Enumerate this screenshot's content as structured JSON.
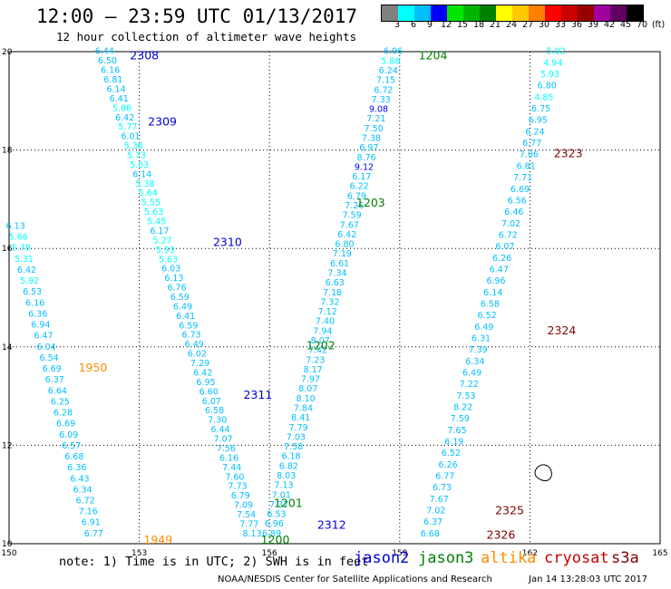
{
  "header": {
    "title": "12:00 – 23:59 UTC 01/13/2017",
    "subtitle": "12 hour collection of altimeter wave heights"
  },
  "legend": {
    "colors": [
      "#808080",
      "#00ffff",
      "#00bfff",
      "#0000ff",
      "#00e600",
      "#00b400",
      "#008000",
      "#ffff00",
      "#ffc800",
      "#ff8000",
      "#ff0000",
      "#c80000",
      "#960000",
      "#a000a0",
      "#600060",
      "#000000"
    ],
    "ticks": [
      "3",
      "6",
      "9",
      "12",
      "15",
      "18",
      "21",
      "24",
      "27",
      "30",
      "33",
      "36",
      "39",
      "42",
      "45",
      "70",
      "(ft)"
    ]
  },
  "map": {
    "x_ticks": [
      "150",
      "153",
      "156",
      "159",
      "162",
      "165"
    ],
    "y_ticks": [
      "20",
      "18",
      "16",
      "14",
      "12",
      "10"
    ],
    "coast_label": ""
  },
  "satellites": {
    "jason2": {
      "name": "jason2",
      "color": "#0000dd"
    },
    "jason3": {
      "name": "jason3",
      "color": "#008000"
    },
    "altika": {
      "name": "altika",
      "color": "#ff8c00"
    },
    "cryosat": {
      "name": "cryosat",
      "color": "#cc0000"
    },
    "s3a": {
      "name": "s3a",
      "color": "#800000"
    }
  },
  "tracks": [
    {
      "sat": "jason2",
      "label": "2308",
      "label_color": "#0000dd",
      "lon_start": 152.2,
      "lat_start": 19.95,
      "lon_end": 155.6,
      "lat_end": 10.15,
      "values": [
        "6.44",
        "6.50",
        "6.16",
        "6.81",
        "6.14",
        "6.41",
        "5.88",
        "6.42",
        "5.77",
        "6.01",
        "5.36",
        "5.73",
        "5.63",
        "6.14",
        "5.38",
        "5.64",
        "5.55",
        "5.63",
        "5.45",
        "6.17",
        "5.27",
        "5.93",
        "5.63",
        "6.03",
        "6.13",
        "6.76",
        "6.59",
        "6.49",
        "6.41",
        "6.59",
        "6.73",
        "6.49",
        "6.02",
        "7.29",
        "6.42",
        "6.95",
        "6.60",
        "6.07",
        "6.58",
        "7.30",
        "6.44",
        "7.07",
        "7.56",
        "6.16",
        "7.44",
        "7.60",
        "7.73",
        "6.79",
        "7.09",
        "7.54",
        "7.77",
        "8.13"
      ]
    },
    {
      "sat": "jason3",
      "label": "1204",
      "label_color": "#008000",
      "lon_start": 158.85,
      "lat_start": 19.95,
      "lon_end": 156.05,
      "lat_end": 10.15,
      "values": [
        "6.96",
        "5.86",
        "6.24",
        "7.15",
        "6.72",
        "7.33",
        "9.08",
        "7.21",
        "7.50",
        "7.38",
        "6.97",
        "8.76",
        "9.12",
        "6.17",
        "6.22",
        "6.79",
        "7.26",
        "7.59",
        "7.67",
        "6.42",
        "6.80",
        "7.19",
        "6.61",
        "7.34",
        "6.63",
        "7.18",
        "7.32",
        "7.12",
        "7.40",
        "7.94",
        "8.07",
        "7.42",
        "7.23",
        "8.17",
        "7.97",
        "8.07",
        "8.10",
        "7.84",
        "8.41",
        "7.79",
        "7.03",
        "7.58",
        "6.18",
        "6.82",
        "8.03",
        "7.13",
        "7.01",
        "7.37",
        "6.53",
        "6.96",
        "6.89"
      ]
    },
    {
      "sat": "jason2",
      "label": "",
      "label_color": "#0000dd",
      "lon_start": 150.15,
      "lat_start": 16.4,
      "lon_end": 151.95,
      "lat_end": 10.15,
      "values": [
        "6.13",
        "5.66",
        "5.78",
        "5.31",
        "6.42",
        "5.92",
        "6.53",
        "6.16",
        "6.36",
        "6.94",
        "6.47",
        "6.04",
        "6.54",
        "6.69",
        "6.37",
        "6.64",
        "6.25",
        "6.28",
        "6.69",
        "6.09",
        "6.57",
        "6.68",
        "6.36",
        "6.43",
        "6.34",
        "6.72",
        "7.16",
        "6.91",
        "6.77"
      ]
    },
    {
      "sat": "cryosat",
      "label": "",
      "label_color": "#cc0000",
      "lon_start": 162.6,
      "lat_start": 19.95,
      "lon_end": 159.7,
      "lat_end": 10.15,
      "values": [
        "5.02",
        "4.94",
        "5.93",
        "6.80",
        "4.85",
        "6.75",
        "6.95",
        "6.24",
        "6.77",
        "7.06",
        "6.81",
        "7.71",
        "6.69",
        "6.56",
        "6.46",
        "7.02",
        "6.72",
        "6.07",
        "6.26",
        "6.47",
        "6.96",
        "6.14",
        "6.58",
        "6.52",
        "6.49",
        "6.31",
        "7.39",
        "6.34",
        "6.49",
        "7.22",
        "7.53",
        "8.22",
        "7.59",
        "7.65",
        "6.19",
        "6.52",
        "6.26",
        "6.77",
        "6.73",
        "7.67",
        "7.02",
        "6.37",
        "6.68"
      ]
    }
  ],
  "labels": [
    {
      "text": "2309",
      "lon": 153.2,
      "lat": 18.5,
      "color": "#0000dd"
    },
    {
      "text": "1203",
      "lon": 158.0,
      "lat": 16.85,
      "color": "#008000"
    },
    {
      "text": "2310",
      "lon": 154.7,
      "lat": 16.05,
      "color": "#0000dd"
    },
    {
      "text": "2323",
      "lon": 162.55,
      "lat": 17.85,
      "color": "#800000"
    },
    {
      "text": "2324",
      "lon": 162.4,
      "lat": 14.25,
      "color": "#800000"
    },
    {
      "text": "1202",
      "lon": 156.85,
      "lat": 13.95,
      "color": "#008000"
    },
    {
      "text": "2311",
      "lon": 155.4,
      "lat": 12.95,
      "color": "#0000dd"
    },
    {
      "text": "1950",
      "lon": 151.6,
      "lat": 13.5,
      "color": "#ff8c00"
    },
    {
      "text": "1201",
      "lon": 156.1,
      "lat": 10.75,
      "color": "#008000"
    },
    {
      "text": "2312",
      "lon": 157.1,
      "lat": 10.3,
      "color": "#0000dd"
    },
    {
      "text": "2325",
      "lon": 161.2,
      "lat": 10.6,
      "color": "#800000"
    },
    {
      "text": "2326",
      "lon": 161.0,
      "lat": 10.1,
      "color": "#800000"
    },
    {
      "text": "1949",
      "lon": 153.1,
      "lat": 10.0,
      "color": "#ff8c00"
    },
    {
      "text": "1200",
      "lon": 155.8,
      "lat": 10.0,
      "color": "#008000"
    }
  ],
  "footer": {
    "note": "note: 1) Time is in UTC; 2) SWH is in feet",
    "credit": "NOAA/NESDIS Center for Satellite Applications and Research",
    "timestamp": "Jan 14 13:28:03 UTC 2017"
  }
}
